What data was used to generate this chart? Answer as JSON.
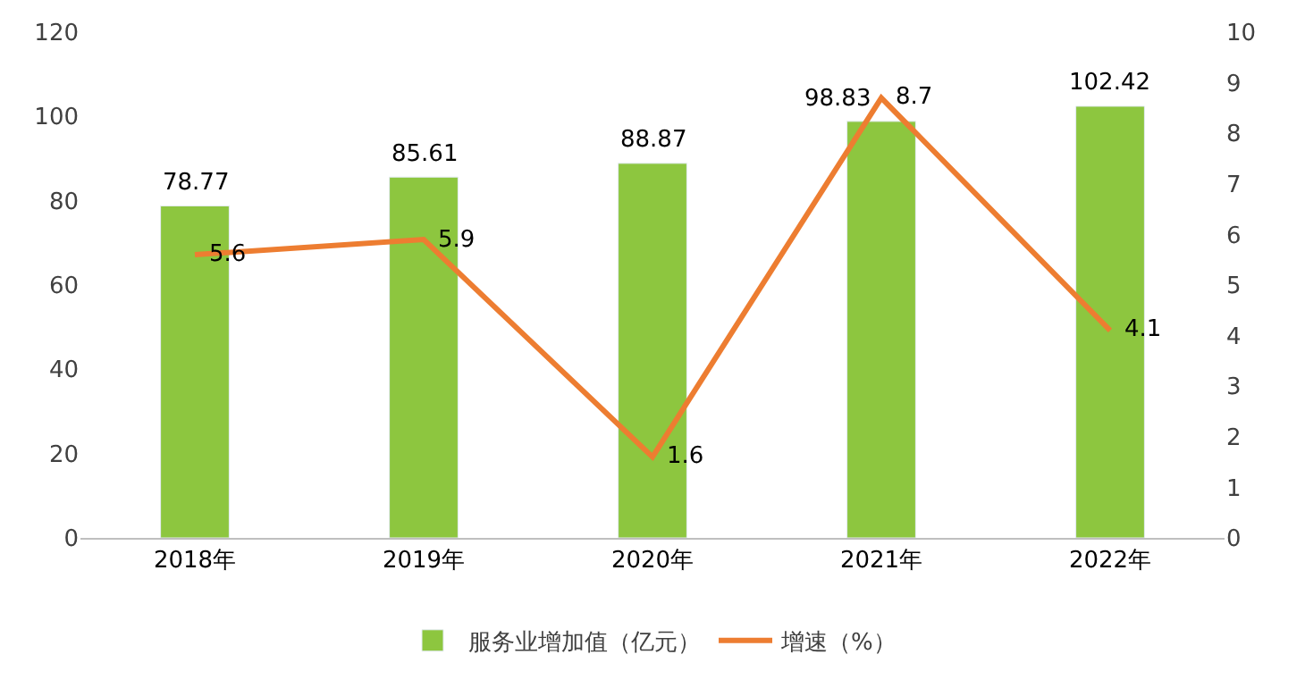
{
  "chart_data": {
    "type": "bar",
    "categories": [
      "2018年",
      "2019年",
      "2020年",
      "2021年",
      "2022年"
    ],
    "series": [
      {
        "name": "服务业增加值（亿元）",
        "color": "#8dc63f",
        "values": [
          78.77,
          85.61,
          88.87,
          98.83,
          102.42
        ]
      },
      {
        "name": "增速（%）",
        "type": "line",
        "axis": "y2",
        "color": "#ed7d31",
        "values": [
          5.6,
          5.9,
          1.6,
          8.7,
          4.1
        ]
      }
    ],
    "ylim": [
      0,
      120
    ],
    "yticks": [
      0,
      20,
      40,
      60,
      80,
      100,
      120
    ],
    "y2lim": [
      0,
      10
    ],
    "y2ticks": [
      0,
      1,
      2,
      3,
      4,
      5,
      6,
      7,
      8,
      9,
      10
    ],
    "legend": "bottom",
    "data_labels": true,
    "marker": "none"
  }
}
